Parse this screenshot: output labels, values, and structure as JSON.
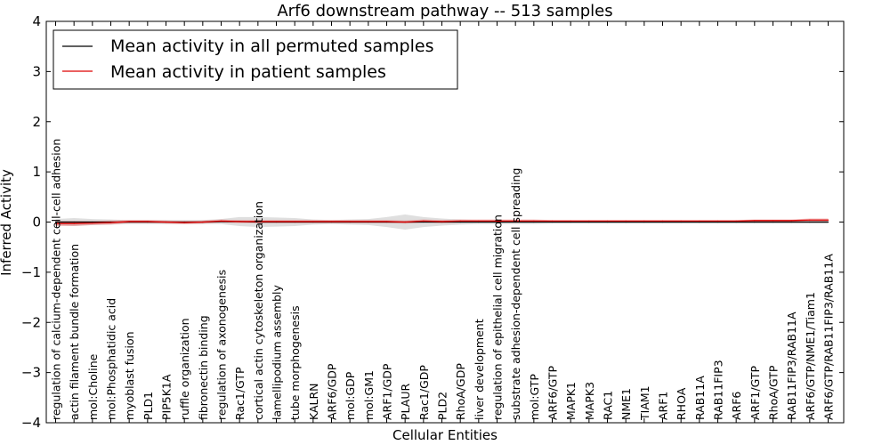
{
  "chart_data": {
    "type": "line",
    "title": "Arf6 downstream pathway -- 513 samples",
    "xlabel": "Cellular Entities",
    "ylabel": "Inferred Activity",
    "ylim": [
      -4,
      4
    ],
    "yticks": [
      -4,
      -3,
      -2,
      -1,
      0,
      1,
      2,
      3,
      4
    ],
    "grid": false,
    "legend_position": "top-left",
    "categories": [
      "regulation of calcium-dependent cell-cell adhesion",
      "actin filament bundle formation",
      "mol:Choline",
      "mol:Phosphatidic acid",
      "myoblast fusion",
      "PLD1",
      "PIP5K1A",
      "ruffle organization",
      "fibronectin binding",
      "regulation of axonogenesis",
      "Rac1/GTP",
      "cortical actin cytoskeleton organization",
      "lamellipodium assembly",
      "tube morphogenesis",
      "KALRN",
      "ARF6/GDP",
      "mol:GDP",
      "mol:GM1",
      "ARF1/GDP",
      "PLAUR",
      "Rac1/GDP",
      "PLD2",
      "RhoA/GDP",
      "liver development",
      "regulation of epithelial cell migration",
      "substrate adhesion-dependent cell spreading",
      "mol:GTP",
      "ARF6/GTP",
      "MAPK1",
      "MAPK3",
      "RAC1",
      "NME1",
      "TIAM1",
      "ARF1",
      "RHOA",
      "RAB11A",
      "RAB11FIP3",
      "ARF6",
      "ARF1/GTP",
      "RhoA/GTP",
      "RAB11FIP3/RAB11A",
      "ARF6/GTP/NME1/Tiam1",
      "ARF6/GTP/RAB11FIP3/RAB11A"
    ],
    "series": [
      {
        "name": "Mean activity in all permuted samples",
        "color": "#000000",
        "values": [
          0.0,
          0.0,
          0.0,
          0.0,
          0.0,
          0.0,
          0.0,
          0.0,
          0.0,
          0.01,
          0.01,
          0.0,
          0.0,
          0.0,
          0.0,
          0.0,
          0.0,
          0.0,
          0.0,
          0.0,
          0.0,
          0.0,
          0.0,
          0.0,
          0.0,
          0.0,
          0.0,
          0.0,
          0.0,
          0.0,
          0.0,
          0.0,
          0.0,
          0.0,
          0.0,
          0.0,
          0.0,
          0.0,
          0.0,
          0.0,
          0.0,
          0.0,
          0.0
        ],
        "spread": [
          0.06,
          0.08,
          0.06,
          0.05,
          0.04,
          0.04,
          0.04,
          0.04,
          0.04,
          0.05,
          0.09,
          0.1,
          0.09,
          0.08,
          0.05,
          0.04,
          0.05,
          0.06,
          0.1,
          0.15,
          0.1,
          0.07,
          0.05,
          0.04,
          0.04,
          0.04,
          0.04,
          0.03,
          0.03,
          0.03,
          0.03,
          0.03,
          0.03,
          0.03,
          0.03,
          0.03,
          0.03,
          0.03,
          0.03,
          0.03,
          0.03,
          0.03,
          0.03
        ]
      },
      {
        "name": "Mean activity in patient samples",
        "color": "#dd0000",
        "values": [
          -0.03,
          -0.03,
          -0.02,
          -0.01,
          0.01,
          0.01,
          0.0,
          -0.01,
          0.0,
          0.02,
          0.01,
          0.01,
          0.01,
          0.01,
          0.01,
          0.01,
          0.01,
          0.01,
          0.01,
          0.0,
          0.02,
          0.01,
          0.02,
          0.02,
          0.02,
          0.02,
          0.02,
          0.02,
          0.02,
          0.02,
          0.02,
          0.02,
          0.02,
          0.02,
          0.02,
          0.02,
          0.02,
          0.02,
          0.03,
          0.03,
          0.03,
          0.04,
          0.04
        ],
        "spread": [
          0.05,
          0.05,
          0.04,
          0.04,
          0.03,
          0.03,
          0.03,
          0.03,
          0.03,
          0.03,
          0.03,
          0.03,
          0.03,
          0.03,
          0.03,
          0.03,
          0.03,
          0.03,
          0.03,
          0.03,
          0.03,
          0.03,
          0.03,
          0.03,
          0.03,
          0.03,
          0.03,
          0.02,
          0.02,
          0.02,
          0.02,
          0.02,
          0.02,
          0.02,
          0.02,
          0.02,
          0.02,
          0.02,
          0.02,
          0.02,
          0.02,
          0.03,
          0.03
        ]
      }
    ]
  }
}
